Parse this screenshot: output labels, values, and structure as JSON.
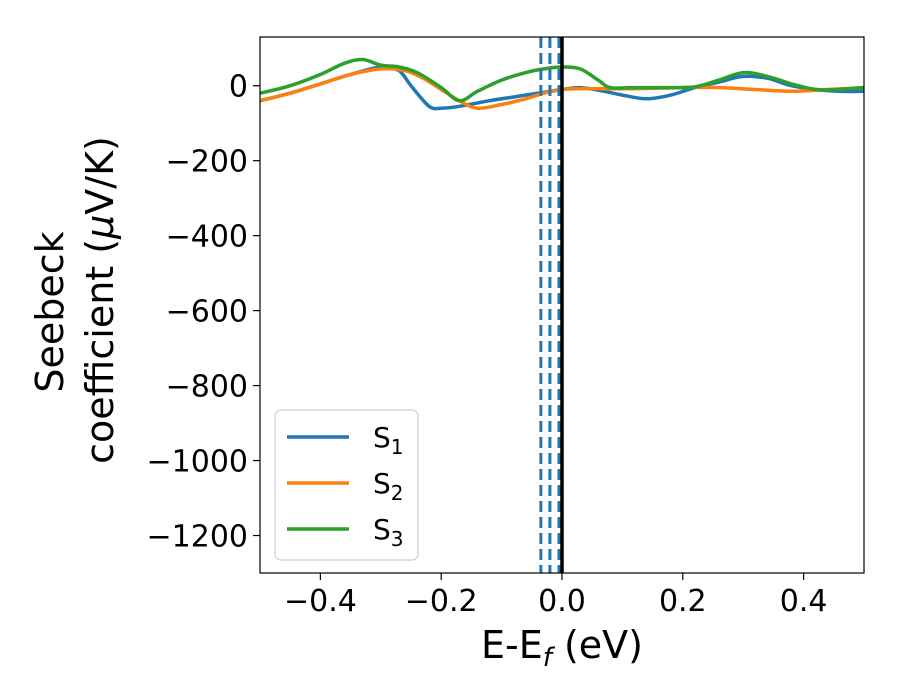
{
  "chart_data": {
    "type": "line",
    "xlabel": "E-E",
    "xlabel_sub": "f",
    "xlabel_unit": " (eV)",
    "ylabel_line1": "Seebeck",
    "ylabel_line2": "coefficient  (",
    "ylabel_mu": "μ",
    "ylabel_unit": "V/K)",
    "xlim": [
      -0.5,
      0.5
    ],
    "ylim": [
      -1300,
      130
    ],
    "xticks": [
      -0.4,
      -0.2,
      0.0,
      0.2,
      0.4
    ],
    "xtick_labels": [
      "−0.4",
      "−0.2",
      "0.0",
      "0.2",
      "0.4"
    ],
    "yticks": [
      0,
      -200,
      -400,
      -600,
      -800,
      -1000,
      -1200
    ],
    "ytick_labels": [
      "0",
      "−200",
      "−400",
      "−600",
      "−800",
      "−1000",
      "−1200"
    ],
    "grid": false,
    "legend_position": "lower-left",
    "vertical_lines": [
      {
        "x": -0.035,
        "style": "dashed",
        "color": "#1f77b4"
      },
      {
        "x": -0.02,
        "style": "dashed",
        "color": "#1f77b4"
      },
      {
        "x": -0.005,
        "style": "dashed",
        "color": "#1f77b4"
      },
      {
        "x": 0.0,
        "style": "solid",
        "color": "#000000"
      }
    ],
    "series": [
      {
        "name": "S",
        "sub": "1",
        "color": "#1f77b4",
        "points": [
          [
            -0.5,
            -40
          ],
          [
            -0.45,
            -20
          ],
          [
            -0.4,
            5
          ],
          [
            -0.35,
            30
          ],
          [
            -0.3,
            50
          ],
          [
            -0.27,
            40
          ],
          [
            -0.25,
            0
          ],
          [
            -0.22,
            -55
          ],
          [
            -0.2,
            -60
          ],
          [
            -0.17,
            -55
          ],
          [
            -0.12,
            -40
          ],
          [
            -0.08,
            -30
          ],
          [
            -0.04,
            -20
          ],
          [
            -0.02,
            -15
          ],
          [
            0.0,
            -10
          ],
          [
            0.03,
            -5
          ],
          [
            0.07,
            -15
          ],
          [
            0.1,
            -25
          ],
          [
            0.14,
            -35
          ],
          [
            0.18,
            -25
          ],
          [
            0.22,
            -5
          ],
          [
            0.26,
            10
          ],
          [
            0.3,
            25
          ],
          [
            0.34,
            20
          ],
          [
            0.38,
            0
          ],
          [
            0.42,
            -10
          ],
          [
            0.46,
            -15
          ],
          [
            0.5,
            -15
          ]
        ]
      },
      {
        "name": "S",
        "sub": "2",
        "color": "#ff7f0e",
        "points": [
          [
            -0.5,
            -40
          ],
          [
            -0.45,
            -20
          ],
          [
            -0.4,
            5
          ],
          [
            -0.35,
            30
          ],
          [
            -0.3,
            45
          ],
          [
            -0.26,
            40
          ],
          [
            -0.23,
            20
          ],
          [
            -0.2,
            -10
          ],
          [
            -0.17,
            -40
          ],
          [
            -0.14,
            -60
          ],
          [
            -0.1,
            -50
          ],
          [
            -0.06,
            -35
          ],
          [
            -0.03,
            -20
          ],
          [
            0.0,
            -10
          ],
          [
            0.03,
            -8
          ],
          [
            0.07,
            -8
          ],
          [
            0.12,
            -8
          ],
          [
            0.2,
            -5
          ],
          [
            0.26,
            -5
          ],
          [
            0.32,
            -10
          ],
          [
            0.38,
            -15
          ],
          [
            0.44,
            -10
          ],
          [
            0.5,
            -5
          ]
        ]
      },
      {
        "name": "S",
        "sub": "3",
        "color": "#2ca02c",
        "points": [
          [
            -0.5,
            -20
          ],
          [
            -0.45,
            0
          ],
          [
            -0.4,
            30
          ],
          [
            -0.36,
            60
          ],
          [
            -0.33,
            70
          ],
          [
            -0.3,
            55
          ],
          [
            -0.27,
            50
          ],
          [
            -0.24,
            35
          ],
          [
            -0.2,
            -5
          ],
          [
            -0.17,
            -40
          ],
          [
            -0.14,
            -15
          ],
          [
            -0.1,
            15
          ],
          [
            -0.06,
            35
          ],
          [
            -0.03,
            45
          ],
          [
            0.0,
            50
          ],
          [
            0.03,
            45
          ],
          [
            0.06,
            15
          ],
          [
            0.08,
            -5
          ],
          [
            0.12,
            -5
          ],
          [
            0.18,
            -5
          ],
          [
            0.22,
            -3
          ],
          [
            0.26,
            15
          ],
          [
            0.3,
            35
          ],
          [
            0.34,
            25
          ],
          [
            0.38,
            5
          ],
          [
            0.42,
            -10
          ],
          [
            0.46,
            -10
          ],
          [
            0.5,
            -5
          ]
        ]
      }
    ]
  }
}
